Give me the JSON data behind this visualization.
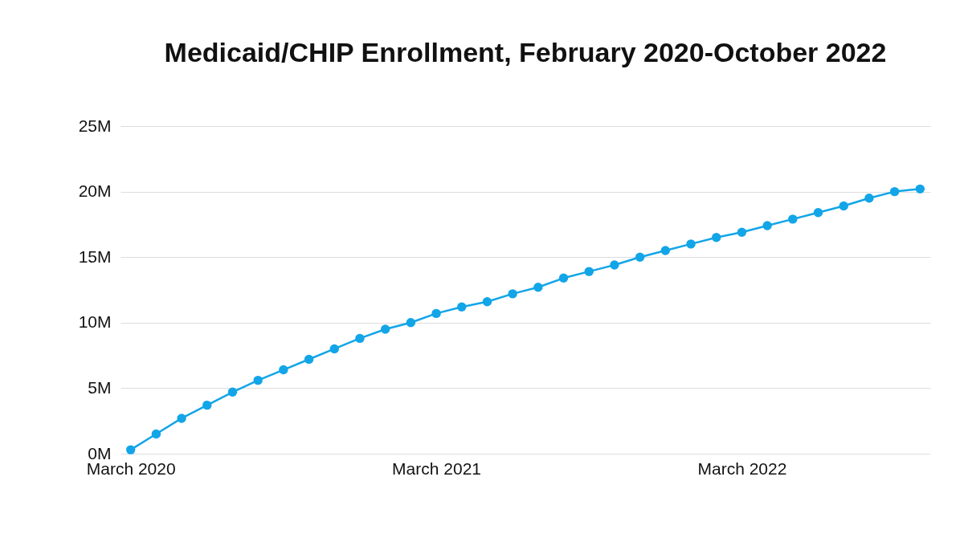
{
  "chart_data": {
    "type": "line",
    "title": "Medicaid/CHIP Enrollment, February 2020-October 2022",
    "categories": [
      "March 2020",
      null,
      null,
      null,
      null,
      null,
      null,
      null,
      null,
      null,
      null,
      null,
      "March 2021",
      null,
      null,
      null,
      null,
      null,
      null,
      null,
      null,
      null,
      null,
      null,
      "March 2022",
      null,
      null,
      null,
      null,
      null,
      null,
      null
    ],
    "series": [
      {
        "color": "#12a5e8",
        "values": [
          0.3,
          1.5,
          2.7,
          3.7,
          4.7,
          5.6,
          6.4,
          7.2,
          8.0,
          8.8,
          9.5,
          10.0,
          10.7,
          11.2,
          11.6,
          12.2,
          12.7,
          13.4,
          13.9,
          14.4,
          15.0,
          15.5,
          16.0,
          16.5,
          16.9,
          17.4,
          17.9,
          18.4,
          18.9,
          19.5,
          20.0,
          20.2
        ]
      }
    ],
    "ylim": [
      0,
      25
    ],
    "yticks": [
      {
        "value": 0,
        "label": "0M"
      },
      {
        "value": 5,
        "label": "5M"
      },
      {
        "value": 10,
        "label": "10M"
      },
      {
        "value": 15,
        "label": "15M"
      },
      {
        "value": 20,
        "label": "20M"
      },
      {
        "value": 25,
        "label": "25M"
      }
    ],
    "grid": "y",
    "marker": "circle",
    "line_style": "solid"
  }
}
